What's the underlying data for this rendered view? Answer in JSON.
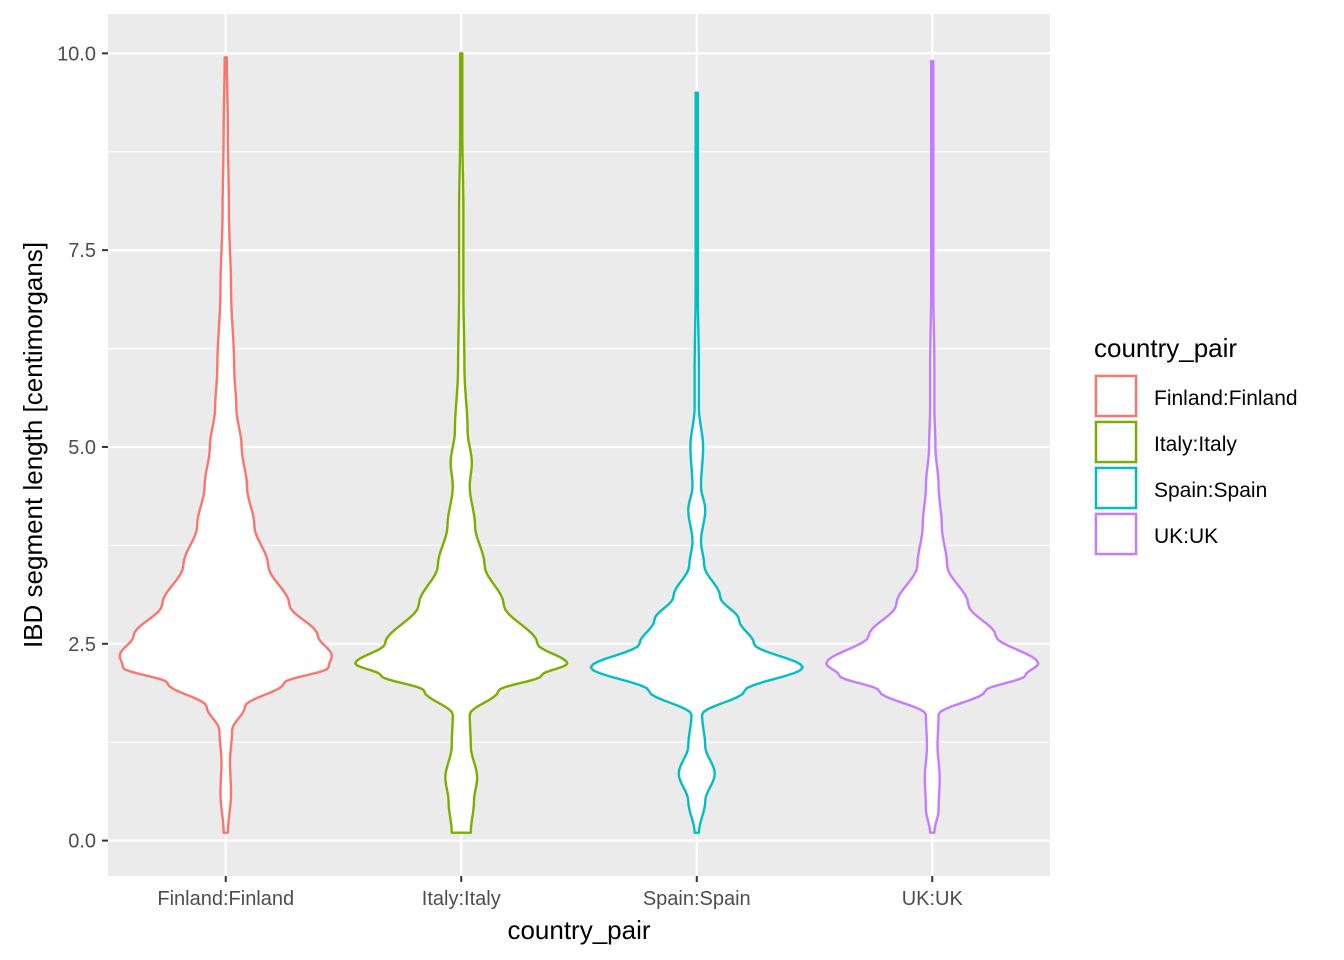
{
  "chart_data": {
    "type": "violin",
    "xlabel": "country_pair",
    "ylabel": "IBD segment length [centimorgans]",
    "ylim": [
      -0.45,
      10.5
    ],
    "yticks": [
      0.0,
      2.5,
      5.0,
      7.5,
      10.0
    ],
    "ytick_labels": [
      "0.0",
      "2.5",
      "5.0",
      "7.5",
      "10.0"
    ],
    "grid": true,
    "legend": {
      "title": "country_pair",
      "position": "right"
    },
    "categories": [
      "Finland:Finland",
      "Italy:Italy",
      "Spain:Spain",
      "UK:UK"
    ],
    "series": [
      {
        "name": "Finland:Finland",
        "color": "#F8766D",
        "range": [
          0.1,
          9.95
        ],
        "profile": [
          [
            0.1,
            0.02
          ],
          [
            0.6,
            0.05
          ],
          [
            1.0,
            0.04
          ],
          [
            1.4,
            0.06
          ],
          [
            1.7,
            0.18
          ],
          [
            2.0,
            0.55
          ],
          [
            2.2,
            0.97
          ],
          [
            2.35,
            1.0
          ],
          [
            2.6,
            0.87
          ],
          [
            3.0,
            0.6
          ],
          [
            3.5,
            0.4
          ],
          [
            4.0,
            0.27
          ],
          [
            4.5,
            0.2
          ],
          [
            5.0,
            0.15
          ],
          [
            5.5,
            0.1
          ],
          [
            6.0,
            0.08
          ],
          [
            7.0,
            0.05
          ],
          [
            8.0,
            0.03
          ],
          [
            9.0,
            0.02
          ],
          [
            9.95,
            0.01
          ]
        ]
      },
      {
        "name": "Italy:Italy",
        "color": "#7CAE00",
        "range": [
          0.1,
          10.0
        ],
        "profile": [
          [
            0.1,
            0.09
          ],
          [
            0.5,
            0.12
          ],
          [
            0.8,
            0.15
          ],
          [
            1.2,
            0.09
          ],
          [
            1.6,
            0.08
          ],
          [
            1.9,
            0.35
          ],
          [
            2.1,
            0.76
          ],
          [
            2.25,
            1.0
          ],
          [
            2.5,
            0.72
          ],
          [
            3.0,
            0.4
          ],
          [
            3.5,
            0.22
          ],
          [
            4.0,
            0.13
          ],
          [
            4.5,
            0.08
          ],
          [
            4.8,
            0.1
          ],
          [
            5.2,
            0.06
          ],
          [
            6.0,
            0.03
          ],
          [
            7.0,
            0.02
          ],
          [
            8.0,
            0.02
          ],
          [
            9.0,
            0.01
          ],
          [
            10.0,
            0.01
          ]
        ]
      },
      {
        "name": "Spain:Spain",
        "color": "#00BFC4",
        "range": [
          0.1,
          9.5
        ],
        "profile": [
          [
            0.1,
            0.02
          ],
          [
            0.5,
            0.08
          ],
          [
            0.85,
            0.17
          ],
          [
            1.2,
            0.08
          ],
          [
            1.6,
            0.05
          ],
          [
            1.9,
            0.45
          ],
          [
            2.2,
            1.0
          ],
          [
            2.5,
            0.54
          ],
          [
            2.8,
            0.4
          ],
          [
            3.1,
            0.22
          ],
          [
            3.5,
            0.07
          ],
          [
            3.8,
            0.04
          ],
          [
            4.2,
            0.08
          ],
          [
            4.5,
            0.04
          ],
          [
            5.0,
            0.06
          ],
          [
            5.5,
            0.02
          ],
          [
            6.0,
            0.02
          ],
          [
            7.0,
            0.01
          ],
          [
            8.0,
            0.01
          ],
          [
            9.5,
            0.01
          ]
        ]
      },
      {
        "name": "UK:UK",
        "color": "#C77CFF",
        "range": [
          0.1,
          9.9
        ],
        "profile": [
          [
            0.1,
            0.02
          ],
          [
            0.4,
            0.06
          ],
          [
            0.8,
            0.07
          ],
          [
            1.2,
            0.05
          ],
          [
            1.6,
            0.06
          ],
          [
            1.9,
            0.5
          ],
          [
            2.1,
            0.88
          ],
          [
            2.25,
            1.0
          ],
          [
            2.6,
            0.6
          ],
          [
            3.0,
            0.34
          ],
          [
            3.5,
            0.14
          ],
          [
            4.0,
            0.09
          ],
          [
            4.5,
            0.06
          ],
          [
            5.0,
            0.03
          ],
          [
            5.5,
            0.02
          ],
          [
            6.0,
            0.02
          ],
          [
            7.0,
            0.01
          ],
          [
            8.0,
            0.01
          ],
          [
            9.9,
            0.01
          ]
        ]
      }
    ]
  }
}
